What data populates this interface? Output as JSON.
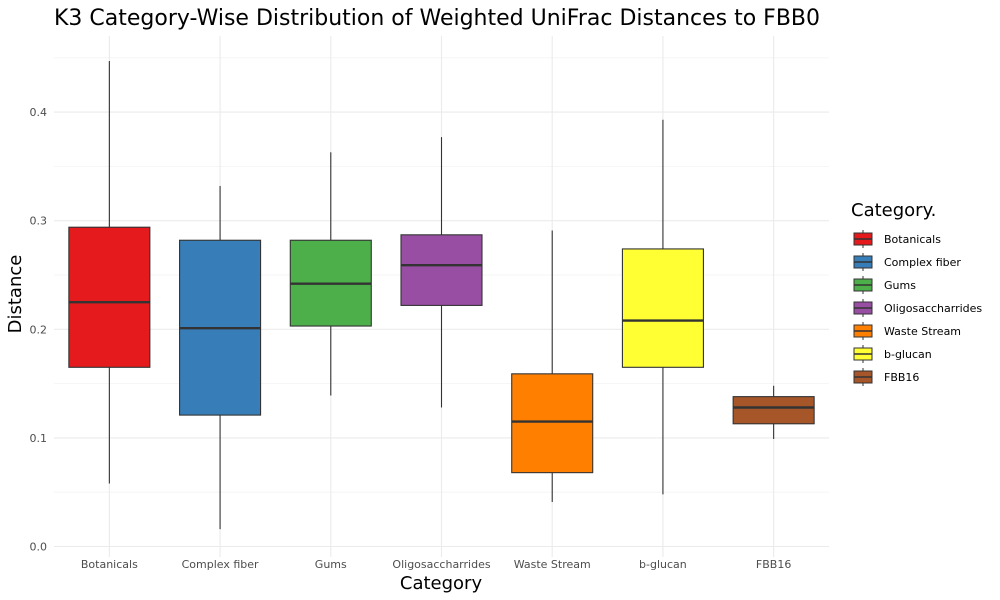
{
  "chart_data": {
    "type": "boxplot",
    "title": "K3 Category-Wise Distribution of Weighted UniFrac Distances to FBB0",
    "xlabel": "Category",
    "ylabel": "Distance",
    "ylim": [
      0,
      0.45
    ],
    "yticks": [
      0.0,
      0.1,
      0.2,
      0.3,
      0.4
    ],
    "ytick_labels": [
      "0.0",
      "0.1",
      "0.2",
      "0.3",
      "0.4"
    ],
    "grid": true,
    "legend": {
      "title": "Category.",
      "position": "right"
    },
    "categories": [
      "Botanicals",
      "Complex fiber",
      "Gums",
      "Oligosaccharrides",
      "Waste Stream",
      "b-glucan",
      "FBB16"
    ],
    "boxes": [
      {
        "category": "Botanicals",
        "whisker_low": 0.058,
        "q1": 0.165,
        "median": 0.225,
        "q3": 0.294,
        "whisker_high": 0.447,
        "color": "#E41A1C"
      },
      {
        "category": "Complex fiber",
        "whisker_low": 0.016,
        "q1": 0.121,
        "median": 0.201,
        "q3": 0.282,
        "whisker_high": 0.332,
        "color": "#377EB8"
      },
      {
        "category": "Gums",
        "whisker_low": 0.139,
        "q1": 0.203,
        "median": 0.242,
        "q3": 0.282,
        "whisker_high": 0.363,
        "color": "#4DAF4A"
      },
      {
        "category": "Oligosaccharrides",
        "whisker_low": 0.128,
        "q1": 0.222,
        "median": 0.259,
        "q3": 0.287,
        "whisker_high": 0.377,
        "color": "#984EA3"
      },
      {
        "category": "Waste Stream",
        "whisker_low": 0.041,
        "q1": 0.068,
        "median": 0.115,
        "q3": 0.159,
        "whisker_high": 0.291,
        "color": "#FF7F00"
      },
      {
        "category": "b-glucan",
        "whisker_low": 0.048,
        "q1": 0.165,
        "median": 0.208,
        "q3": 0.274,
        "whisker_high": 0.393,
        "color": "#FFFF33"
      },
      {
        "category": "FBB16",
        "whisker_low": 0.099,
        "q1": 0.113,
        "median": 0.128,
        "q3": 0.138,
        "whisker_high": 0.148,
        "color": "#A65628"
      }
    ]
  }
}
